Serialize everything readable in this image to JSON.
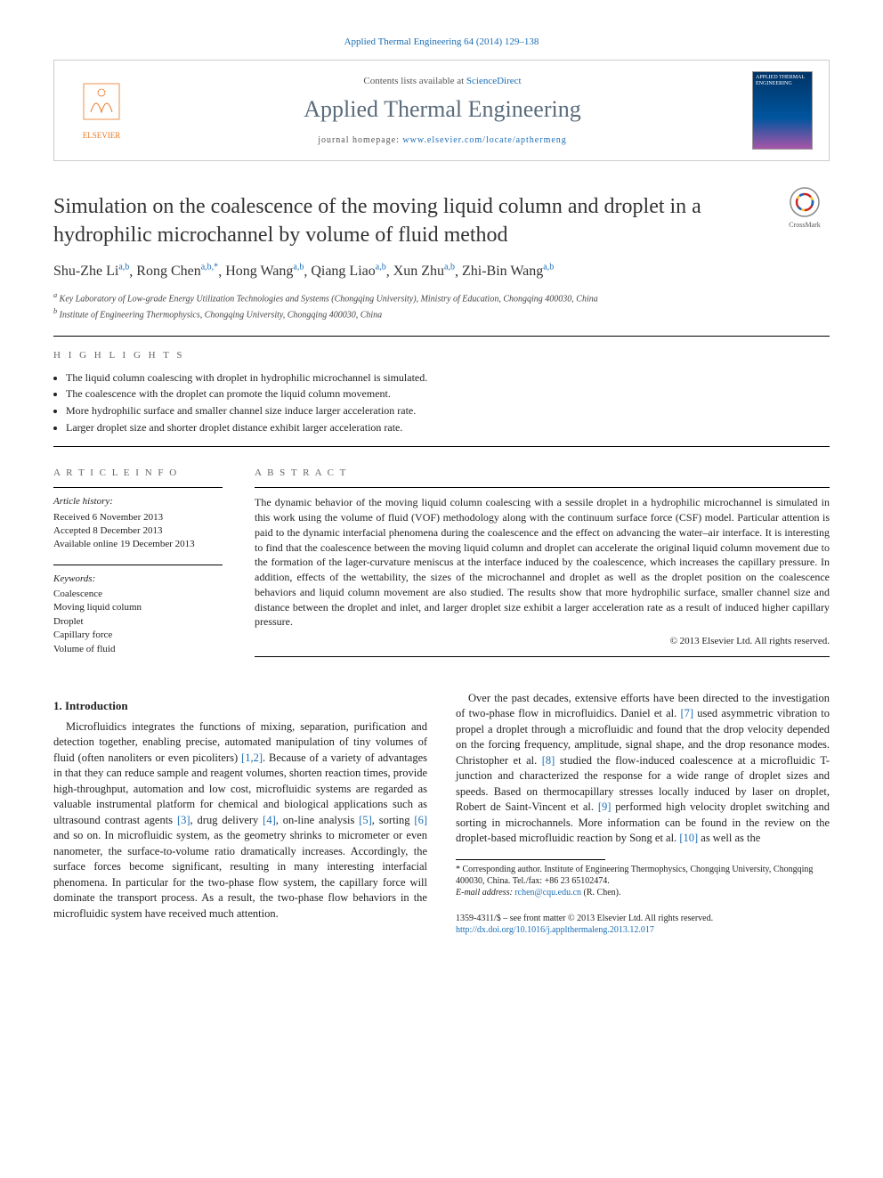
{
  "header": {
    "citation": "Applied Thermal Engineering 64 (2014) 129–138",
    "contents_prefix": "Contents lists available at ",
    "contents_link": "ScienceDirect",
    "journal_name": "Applied Thermal Engineering",
    "homepage_prefix": "journal homepage: ",
    "homepage_url": "www.elsevier.com/locate/apthermeng",
    "cover_text": "APPLIED THERMAL ENGINEERING"
  },
  "title": "Simulation on the coalescence of the moving liquid column and droplet in a hydrophilic microchannel by volume of fluid method",
  "crossmark": "CrossMark",
  "authors": [
    {
      "name": "Shu-Zhe Li",
      "marks": "a,b"
    },
    {
      "name": "Rong Chen",
      "marks": "a,b,*"
    },
    {
      "name": "Hong Wang",
      "marks": "a,b"
    },
    {
      "name": "Qiang Liao",
      "marks": "a,b"
    },
    {
      "name": "Xun Zhu",
      "marks": "a,b"
    },
    {
      "name": "Zhi-Bin Wang",
      "marks": "a,b"
    }
  ],
  "affiliations": {
    "a": "Key Laboratory of Low-grade Energy Utilization Technologies and Systems (Chongqing University), Ministry of Education, Chongqing 400030, China",
    "b": "Institute of Engineering Thermophysics, Chongqing University, Chongqing 400030, China"
  },
  "highlights": {
    "label": "H I G H L I G H T S",
    "items": [
      "The liquid column coalescing with droplet in hydrophilic microchannel is simulated.",
      "The coalescence with the droplet can promote the liquid column movement.",
      "More hydrophilic surface and smaller channel size induce larger acceleration rate.",
      "Larger droplet size and shorter droplet distance exhibit larger acceleration rate."
    ]
  },
  "article_info": {
    "label": "A R T I C L E   I N F O",
    "history_label": "Article history:",
    "history": [
      "Received 6 November 2013",
      "Accepted 8 December 2013",
      "Available online 19 December 2013"
    ],
    "keywords_label": "Keywords:",
    "keywords": [
      "Coalescence",
      "Moving liquid column",
      "Droplet",
      "Capillary force",
      "Volume of fluid"
    ]
  },
  "abstract": {
    "label": "A B S T R A C T",
    "text": "The dynamic behavior of the moving liquid column coalescing with a sessile droplet in a hydrophilic microchannel is simulated in this work using the volume of fluid (VOF) methodology along with the continuum surface force (CSF) model. Particular attention is paid to the dynamic interfacial phenomena during the coalescence and the effect on advancing the water–air interface. It is interesting to find that the coalescence between the moving liquid column and droplet can accelerate the original liquid column movement due to the formation of the lager-curvature meniscus at the interface induced by the coalescence, which increases the capillary pressure. In addition, effects of the wettability, the sizes of the microchannel and droplet as well as the droplet position on the coalescence behaviors and liquid column movement are also studied. The results show that more hydrophilic surface, smaller channel size and distance between the droplet and inlet, and larger droplet size exhibit a larger acceleration rate as a result of induced higher capillary pressure.",
    "copyright": "© 2013 Elsevier Ltd. All rights reserved."
  },
  "body": {
    "section_number": "1.",
    "section_title": "Introduction",
    "p1_a": "Microfluidics integrates the functions of mixing, separation, purification and detection together, enabling precise, automated manipulation of tiny volumes of fluid (often nanoliters or even picoliters) ",
    "cite_1_2": "[1,2]",
    "p1_b": ". Because of a variety of advantages in that they can reduce sample and reagent volumes, shorten reaction times, provide high-throughput, automation and low cost, microfluidic systems are regarded as valuable instrumental platform for chemical and biological applications such as ultrasound contrast agents ",
    "cite_3": "[3]",
    "p1_c": ", drug delivery ",
    "cite_4": "[4]",
    "p1_d": ", on-line analysis ",
    "cite_5": "[5]",
    "p1_e": ", sorting ",
    "cite_6": "[6]",
    "p1_f": " and so on. In microfluidic system, as the geometry shrinks to micrometer or even nanometer, the surface-to-volume ratio dramatically increases. Accordingly, the surface forces become significant, resulting in many interesting interfacial phenomena. In particular for the two-phase flow system, the capillary force will dominate the transport process. As a result, the two-phase flow behaviors in the microfluidic system have received much attention.",
    "p2_a": "Over the past decades, extensive efforts have been directed to the investigation of two-phase flow in microfluidics. Daniel et al. ",
    "cite_7": "[7]",
    "p2_b": " used asymmetric vibration to propel a droplet through a microfluidic and found that the drop velocity depended on the forcing frequency, amplitude, signal shape, and the drop resonance modes. Christopher et al. ",
    "cite_8": "[8]",
    "p2_c": " studied the flow-induced coalescence at a microfluidic T-junction and characterized the response for a wide range of droplet sizes and speeds. Based on thermocapillary stresses locally induced by laser on droplet, Robert de Saint-Vincent et al. ",
    "cite_9": "[9]",
    "p2_d": " performed high velocity droplet switching and sorting in microchannels. More information can be found in the review on the droplet-based microfluidic reaction by Song et al. ",
    "cite_10": "[10]",
    "p2_e": " as well as the"
  },
  "footnote": {
    "text": "* Corresponding author. Institute of Engineering Thermophysics, Chongqing University, Chongqing 400030, China. Tel./fax: +86 23 65102474.",
    "email_label": "E-mail address: ",
    "email": "rchen@cqu.edu.cn",
    "email_suffix": " (R. Chen)."
  },
  "footer": {
    "issn": "1359-4311/$ – see front matter © 2013 Elsevier Ltd. All rights reserved.",
    "doi": "http://dx.doi.org/10.1016/j.applthermaleng.2013.12.017"
  },
  "colors": {
    "link": "#1a6db5",
    "publisher": "#e87722"
  }
}
